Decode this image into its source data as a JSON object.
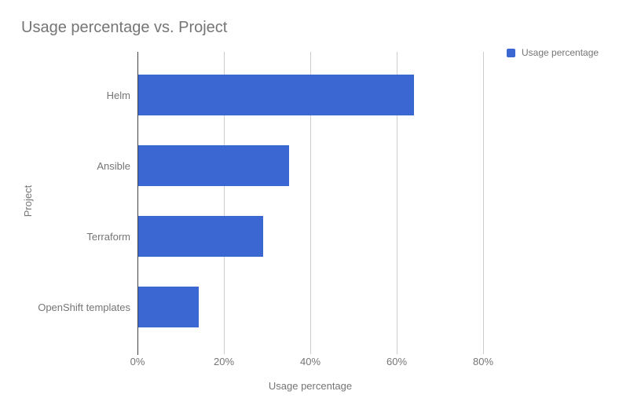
{
  "chart": {
    "title": "Usage percentage vs. Project",
    "legend": {
      "label": "Usage percentage"
    },
    "x_axis": {
      "title": "Usage percentage",
      "ticks": [
        "0%",
        "20%",
        "40%",
        "60%",
        "80%"
      ]
    },
    "y_axis": {
      "title": "Project"
    }
  },
  "chart_data": {
    "type": "bar",
    "orientation": "horizontal",
    "title": "Usage percentage vs. Project",
    "categories": [
      "Helm",
      "Ansible",
      "Terraform",
      "OpenShift templates"
    ],
    "series": [
      {
        "name": "Usage percentage",
        "values": [
          64,
          35,
          29,
          14
        ]
      }
    ],
    "xlabel": "Usage percentage",
    "ylabel": "Project",
    "xlim": [
      0,
      80
    ],
    "xticks_percent": [
      0,
      20,
      40,
      60,
      80
    ],
    "grid": true,
    "legend_position": "top-right",
    "bar_color": "#3A67D2"
  },
  "colors": {
    "bar": "#3A67D2",
    "text": "#757575",
    "gridline": "#CCCCCC",
    "axis_line": "#424242",
    "background": "#FFFFFF"
  }
}
